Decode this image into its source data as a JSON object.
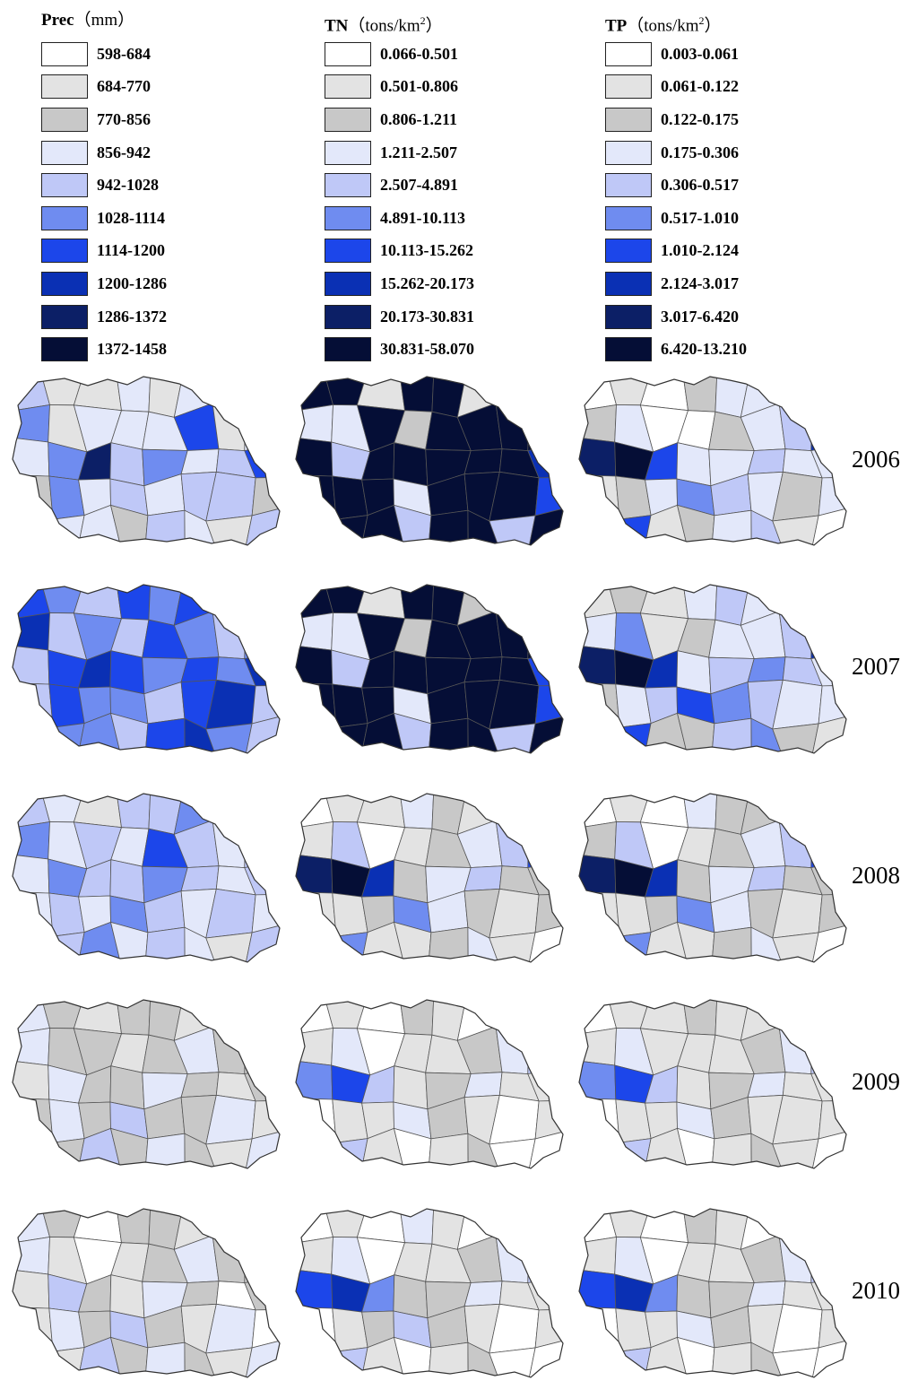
{
  "palette": [
    "#ffffff",
    "#e3e3e3",
    "#c8c8c8",
    "#e3e8fa",
    "#bfc8f7",
    "#6f8cf0",
    "#1c46ea",
    "#0a30b4",
    "#0c1f66",
    "#050e36"
  ],
  "legends": [
    {
      "title": "Prec",
      "unit": "（mm）",
      "classes": [
        "598-684",
        "684-770",
        "770-856",
        "856-942",
        "942-1028",
        "1028-1114",
        "1114-1200",
        "1200-1286",
        "1286-1372",
        "1372-1458"
      ]
    },
    {
      "title": "TN",
      "unit": "（tons/km",
      "unit_sup": "2",
      "unit_close": "）",
      "classes": [
        "0.066-0.501",
        "0.501-0.806",
        "0.806-1.211",
        "1.211-2.507",
        "2.507-4.891",
        "4.891-10.113",
        "10.113-15.262",
        "15.262-20.173",
        "20.173-30.831",
        "30.831-58.070"
      ]
    },
    {
      "title": "TP",
      "unit": "（tons/km",
      "unit_sup": "2",
      "unit_close": "）",
      "classes": [
        "0.003-0.061",
        "0.061-0.122",
        "0.122-0.175",
        "0.175-0.306",
        "0.306-0.517",
        "0.517-1.010",
        "1.010-2.124",
        "2.124-3.017",
        "3.017-6.420",
        "6.420-13.210"
      ]
    }
  ],
  "years": [
    "2006",
    "2007",
    "2008",
    "2009",
    "2010"
  ],
  "map_class_index": [
    [
      [
        4,
        1,
        1,
        3,
        1,
        3,
        3,
        4,
        5,
        1,
        3,
        3,
        3,
        6,
        1,
        3,
        3,
        5,
        8,
        4,
        5,
        3,
        4,
        6,
        2,
        5,
        3,
        4,
        3,
        4,
        4,
        2,
        3,
        3,
        3,
        2,
        4,
        3,
        1,
        4
      ],
      [
        9,
        9,
        1,
        9,
        9,
        1,
        2,
        9,
        3,
        3,
        9,
        2,
        9,
        9,
        9,
        9,
        9,
        4,
        9,
        9,
        9,
        9,
        9,
        7,
        9,
        9,
        9,
        3,
        9,
        9,
        9,
        6,
        9,
        9,
        9,
        4,
        9,
        9,
        4,
        9
      ],
      [
        0,
        1,
        0,
        2,
        3,
        3,
        1,
        3,
        2,
        3,
        0,
        0,
        2,
        3,
        4,
        7,
        8,
        9,
        6,
        3,
        3,
        4,
        3,
        3,
        1,
        2,
        3,
        5,
        4,
        3,
        2,
        3,
        4,
        6,
        1,
        2,
        3,
        4,
        1,
        0
      ]
    ],
    [
      [
        6,
        5,
        4,
        6,
        5,
        6,
        4,
        5,
        7,
        4,
        5,
        4,
        6,
        5,
        4,
        5,
        4,
        6,
        7,
        6,
        5,
        6,
        5,
        7,
        4,
        6,
        5,
        5,
        4,
        6,
        7,
        4,
        6,
        5,
        5,
        4,
        6,
        7,
        5,
        4
      ],
      [
        9,
        9,
        1,
        9,
        9,
        2,
        1,
        9,
        3,
        3,
        9,
        2,
        9,
        9,
        9,
        9,
        9,
        4,
        9,
        9,
        9,
        9,
        9,
        6,
        9,
        9,
        9,
        3,
        9,
        9,
        9,
        6,
        9,
        9,
        9,
        4,
        9,
        9,
        4,
        9
      ],
      [
        1,
        2,
        1,
        3,
        4,
        3,
        2,
        4,
        3,
        5,
        1,
        2,
        3,
        3,
        4,
        7,
        8,
        9,
        7,
        3,
        4,
        5,
        4,
        3,
        2,
        3,
        4,
        6,
        5,
        4,
        3,
        3,
        4,
        6,
        2,
        2,
        4,
        5,
        2,
        1
      ]
    ],
    [
      [
        4,
        3,
        1,
        4,
        4,
        5,
        3,
        4,
        5,
        3,
        4,
        3,
        6,
        4,
        3,
        4,
        3,
        5,
        4,
        4,
        5,
        4,
        3,
        4,
        3,
        4,
        3,
        5,
        4,
        3,
        4,
        3,
        3,
        4,
        5,
        3,
        4,
        3,
        1,
        4
      ],
      [
        0,
        1,
        1,
        3,
        2,
        1,
        1,
        3,
        1,
        4,
        0,
        1,
        2,
        3,
        4,
        6,
        8,
        9,
        7,
        2,
        3,
        4,
        2,
        2,
        1,
        1,
        2,
        5,
        3,
        2,
        1,
        2,
        3,
        5,
        1,
        1,
        2,
        3,
        1,
        0
      ],
      [
        0,
        1,
        0,
        3,
        2,
        2,
        1,
        3,
        2,
        4,
        0,
        1,
        2,
        3,
        4,
        6,
        8,
        9,
        7,
        2,
        3,
        4,
        2,
        2,
        1,
        1,
        2,
        5,
        3,
        2,
        1,
        2,
        3,
        5,
        1,
        1,
        2,
        3,
        1,
        0
      ]
    ],
    [
      [
        3,
        2,
        1,
        2,
        2,
        1,
        2,
        2,
        3,
        2,
        2,
        1,
        2,
        3,
        2,
        2,
        1,
        3,
        2,
        2,
        3,
        2,
        1,
        2,
        2,
        3,
        2,
        4,
        2,
        2,
        3,
        1,
        2,
        2,
        4,
        2,
        3,
        2,
        1,
        3
      ],
      [
        0,
        1,
        0,
        2,
        1,
        0,
        1,
        2,
        1,
        3,
        0,
        1,
        1,
        2,
        3,
        4,
        5,
        6,
        4,
        1,
        2,
        3,
        1,
        1,
        0,
        1,
        1,
        3,
        2,
        1,
        0,
        1,
        2,
        4,
        1,
        0,
        1,
        2,
        0,
        0
      ],
      [
        0,
        1,
        1,
        2,
        1,
        1,
        1,
        2,
        1,
        3,
        1,
        1,
        1,
        2,
        3,
        4,
        5,
        6,
        4,
        1,
        2,
        3,
        1,
        1,
        0,
        1,
        1,
        3,
        2,
        1,
        1,
        1,
        2,
        4,
        1,
        0,
        1,
        2,
        1,
        0
      ]
    ],
    [
      [
        3,
        2,
        0,
        2,
        2,
        1,
        2,
        2,
        3,
        1,
        0,
        1,
        2,
        3,
        2,
        2,
        1,
        4,
        2,
        1,
        3,
        2,
        0,
        2,
        1,
        3,
        2,
        4,
        2,
        1,
        3,
        0,
        2,
        1,
        4,
        2,
        3,
        2,
        1,
        3
      ],
      [
        0,
        1,
        0,
        3,
        1,
        0,
        1,
        2,
        1,
        3,
        0,
        1,
        1,
        2,
        3,
        4,
        6,
        7,
        5,
        2,
        2,
        3,
        1,
        1,
        0,
        1,
        2,
        4,
        2,
        1,
        0,
        1,
        2,
        4,
        1,
        0,
        1,
        2,
        0,
        0
      ],
      [
        0,
        1,
        0,
        2,
        1,
        0,
        1,
        2,
        1,
        3,
        0,
        1,
        1,
        2,
        3,
        4,
        6,
        7,
        5,
        2,
        2,
        3,
        1,
        1,
        0,
        1,
        1,
        3,
        2,
        1,
        0,
        1,
        2,
        4,
        1,
        0,
        1,
        2,
        0,
        0
      ]
    ]
  ]
}
